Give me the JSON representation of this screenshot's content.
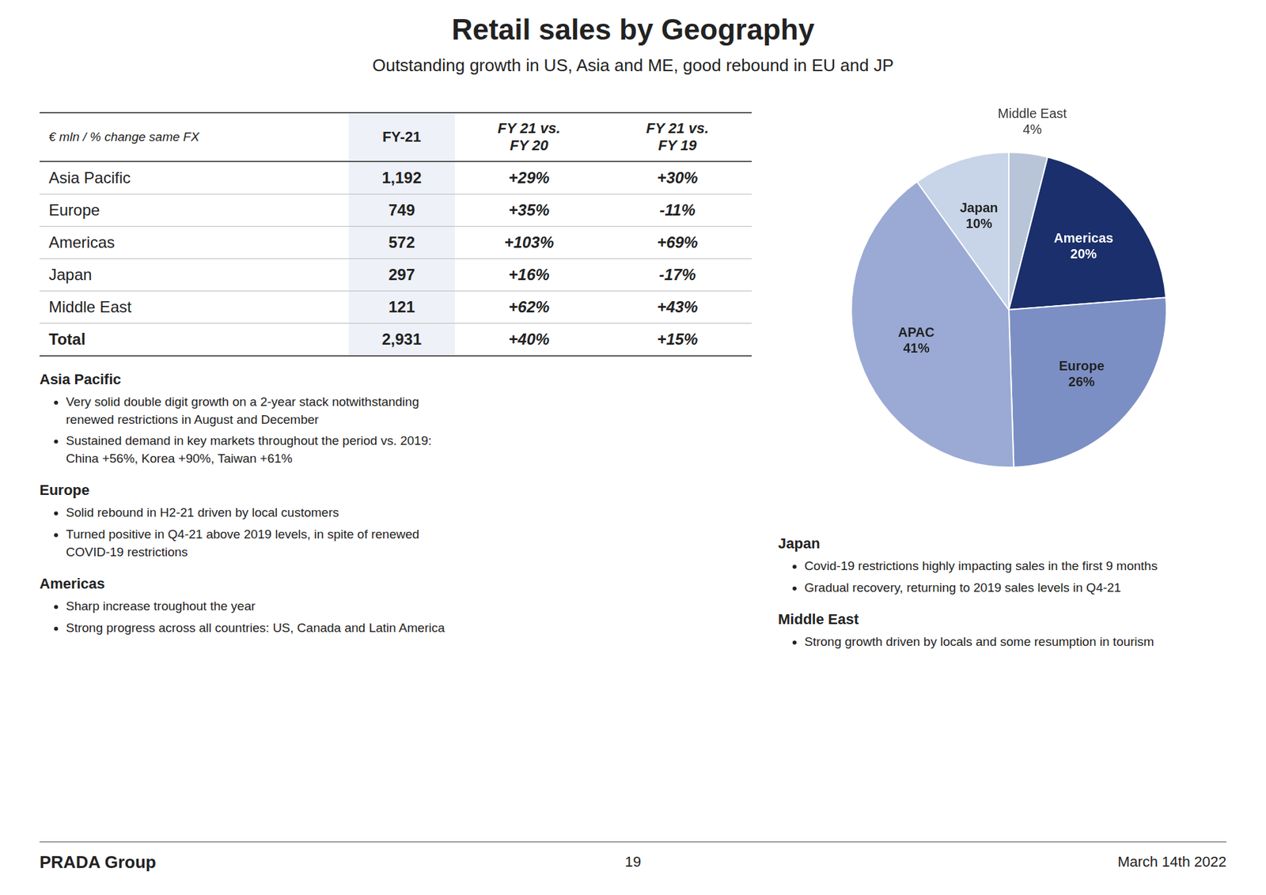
{
  "chart_data": {
    "type": "pie",
    "title": "Retail sales by Geography",
    "subtitle": "Outstanding growth in US, Asia and ME, good rebound in EU and JP",
    "categories": [
      "Middle East",
      "Americas",
      "Europe",
      "APAC",
      "Japan"
    ],
    "values": [
      4,
      20,
      26,
      41,
      10
    ],
    "value_labels": [
      "4%",
      "20%",
      "26%",
      "41%",
      "10%"
    ],
    "colors": [
      "#b8c4d8",
      "#1a2f6b",
      "#7b8fc4",
      "#9aaad4",
      "#c8d4e8"
    ],
    "data_labels": true
  },
  "table": {
    "header": [
      "€ mln / % change same FX",
      "FY-21",
      "FY 21 vs.\nFY 20",
      "FY 21 vs.\nFY 19"
    ],
    "rows": [
      [
        "Asia Pacific",
        "1,192",
        "+29%",
        "+30%"
      ],
      [
        "Europe",
        "749",
        "+35%",
        "-11%"
      ],
      [
        "Americas",
        "572",
        "+103%",
        "+69%"
      ],
      [
        "Japan",
        "297",
        "+16%",
        "-17%"
      ],
      [
        "Middle East",
        "121",
        "+62%",
        "+43%"
      ],
      [
        "Total",
        "2,931",
        "+40%",
        "+15%"
      ]
    ]
  },
  "bullets_left": [
    {
      "title": "Asia Pacific",
      "bullets": [
        "Very solid double digit growth on a 2-year stack notwithstanding\nrenewed restrictions in August and December",
        "Sustained demand in key markets throughout the period vs. 2019:\nChina +56%, Korea +90%, Taiwan +61%"
      ]
    },
    {
      "title": "Europe",
      "bullets": [
        "Solid rebound in H2-21 driven by local customers",
        "Turned positive in Q4-21 above 2019 levels, in spite of renewed\nCOVID-19 restrictions"
      ]
    },
    {
      "title": "Americas",
      "bullets": [
        "Sharp increase troughout the year",
        "Strong progress across all countries: US, Canada and Latin America"
      ]
    }
  ],
  "bullets_right": [
    {
      "title": "Japan",
      "bullets": [
        "Covid-19 restrictions highly impacting sales in the first 9 months",
        "Gradual recovery, returning to 2019 sales levels in Q4-21"
      ]
    },
    {
      "title": "Middle East",
      "bullets": [
        "Strong growth driven by locals and some resumption in tourism"
      ]
    }
  ],
  "footer": {
    "left": "PRADA Group",
    "center": "19",
    "right": "March 14th 2022"
  }
}
